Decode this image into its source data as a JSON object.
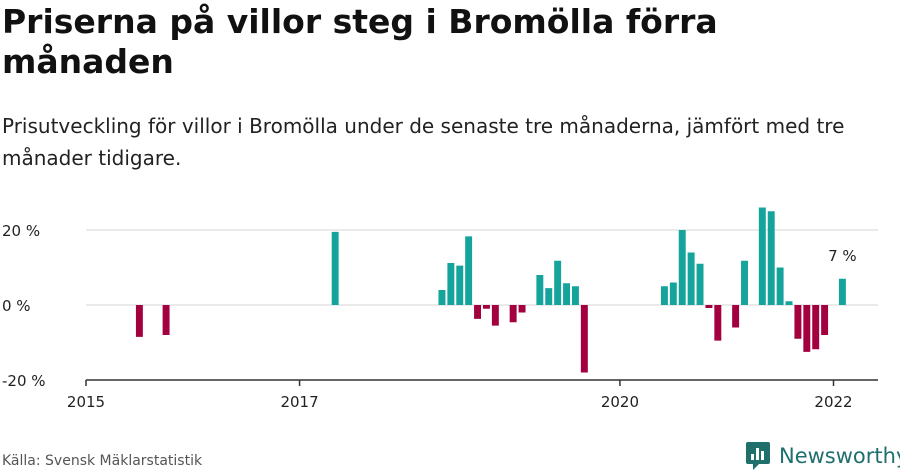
{
  "title": "Priserna på villor steg i Bromölla förra månaden",
  "subtitle": "Prisutveckling för villor i Bromölla under de senaste tre månaderna, jämfört med tre månader tidigare.",
  "source": "Källa: Svensk Mäklarstatistik",
  "brand": "Newsworthy",
  "colors": {
    "positive": "#15a49c",
    "negative": "#a3003f",
    "brand": "#1f6f6d"
  },
  "chart_data": {
    "type": "bar",
    "title": "Priserna på villor steg i Bromölla förra månaden",
    "subtitle": "Prisutveckling för villor i Bromölla under de senaste tre månaderna, jämfört med tre månader tidigare.",
    "unit": "%",
    "ylim": [
      -20,
      28
    ],
    "yticks": [
      {
        "value": 20,
        "label": "20 %"
      },
      {
        "value": 0,
        "label": "0 %"
      },
      {
        "value": -20,
        "label": "-20 %"
      }
    ],
    "xticks": [
      {
        "date": "2015-01",
        "label": "2015"
      },
      {
        "date": "2017-01",
        "label": "2017"
      },
      {
        "date": "2020-01",
        "label": "2020"
      },
      {
        "date": "2022-01",
        "label": "2022"
      }
    ],
    "xrange": [
      "2015-01",
      "2022-06"
    ],
    "grid": true,
    "annotation": {
      "date": "2022-02",
      "label": "7 %"
    },
    "series": [
      {
        "values": [
          {
            "date": "2015-07",
            "value": -8.5
          },
          {
            "date": "2015-10",
            "value": -8
          },
          {
            "date": "2017-05",
            "value": 19.5
          },
          {
            "date": "2018-05",
            "value": 4
          },
          {
            "date": "2018-06",
            "value": 11.2
          },
          {
            "date": "2018-07",
            "value": 10.5
          },
          {
            "date": "2018-08",
            "value": 18.3
          },
          {
            "date": "2018-09",
            "value": -3.7
          },
          {
            "date": "2018-10",
            "value": -1
          },
          {
            "date": "2018-11",
            "value": -5.5
          },
          {
            "date": "2019-01",
            "value": -4.6
          },
          {
            "date": "2019-02",
            "value": -2
          },
          {
            "date": "2019-04",
            "value": 8
          },
          {
            "date": "2019-05",
            "value": 4.5
          },
          {
            "date": "2019-06",
            "value": 11.8
          },
          {
            "date": "2019-07",
            "value": 5.8
          },
          {
            "date": "2019-08",
            "value": 5
          },
          {
            "date": "2019-09",
            "value": -18
          },
          {
            "date": "2020-06",
            "value": 5
          },
          {
            "date": "2020-07",
            "value": 6
          },
          {
            "date": "2020-08",
            "value": 20
          },
          {
            "date": "2020-09",
            "value": 14
          },
          {
            "date": "2020-10",
            "value": 11
          },
          {
            "date": "2020-11",
            "value": -0.8
          },
          {
            "date": "2020-12",
            "value": -9.5
          },
          {
            "date": "2021-02",
            "value": -6
          },
          {
            "date": "2021-03",
            "value": 11.8
          },
          {
            "date": "2021-05",
            "value": 26
          },
          {
            "date": "2021-06",
            "value": 25
          },
          {
            "date": "2021-07",
            "value": 10
          },
          {
            "date": "2021-08",
            "value": 1
          },
          {
            "date": "2021-09",
            "value": -9
          },
          {
            "date": "2021-10",
            "value": -12.5
          },
          {
            "date": "2021-11",
            "value": -11.8
          },
          {
            "date": "2021-12",
            "value": -8
          },
          {
            "date": "2022-02",
            "value": 7
          }
        ]
      }
    ]
  }
}
